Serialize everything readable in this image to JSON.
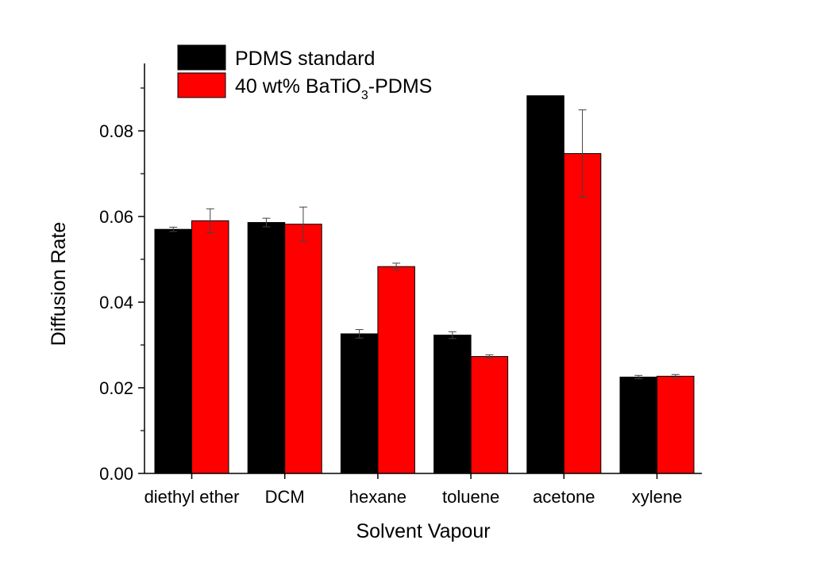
{
  "chart_data": {
    "type": "bar",
    "title": "",
    "xlabel": "Solvent Vapour",
    "ylabel": "Diffusion Rate",
    "ylim": [
      0,
      0.095
    ],
    "yticks": [
      "0.00",
      "0.02",
      "0.04",
      "0.06",
      "0.08"
    ],
    "categories": [
      "diethyl ether",
      "DCM",
      "hexane",
      "toluene",
      "acetone",
      "xylene"
    ],
    "series": [
      {
        "name": "PDMS standard",
        "color": "#000000",
        "values": [
          0.057,
          0.0586,
          0.0326,
          0.0323,
          0.0882,
          0.0225
        ],
        "errors": [
          0.0005,
          0.001,
          0.001,
          0.0008,
          0.0,
          0.0004
        ]
      },
      {
        "name_parts": [
          "40 wt% BaTiO",
          "3",
          "-PDMS"
        ],
        "color": "#ff0000",
        "values": [
          0.059,
          0.0582,
          0.0483,
          0.0273,
          0.0747,
          0.0227
        ],
        "errors": [
          0.0028,
          0.004,
          0.0008,
          0.0004,
          0.0102,
          0.0004
        ]
      }
    ],
    "grid": false,
    "legend_position": "top-left"
  }
}
